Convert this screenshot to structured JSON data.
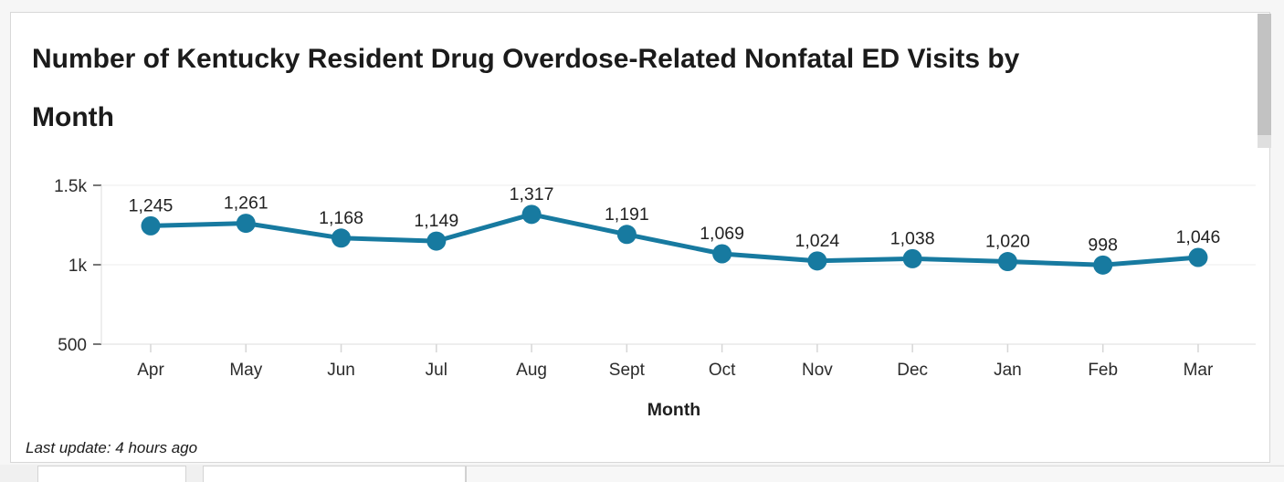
{
  "page": {
    "title_lines": [
      "Number of Kentucky Resident Drug Overdose-Related Nonfatal ED Visits by",
      "Month"
    ],
    "last_update": "Last update: 4 hours ago"
  },
  "chart_data": {
    "type": "line",
    "title": "Number of Kentucky Resident Drug Overdose-Related Nonfatal ED Visits by Month",
    "x": [
      "Apr",
      "May",
      "Jun",
      "Jul",
      "Aug",
      "Sept",
      "Oct",
      "Nov",
      "Dec",
      "Jan",
      "Feb",
      "Mar"
    ],
    "values": [
      1245,
      1261,
      1168,
      1149,
      1317,
      1191,
      1069,
      1024,
      1038,
      1020,
      998,
      1046
    ],
    "labels": [
      "1,245",
      "1,261",
      "1,168",
      "1,149",
      "1,317",
      "1,191",
      "1,069",
      "1,024",
      "1,038",
      "1,020",
      "998",
      "1,046"
    ],
    "xlabel": "Month",
    "ylabel": "",
    "ylim": [
      500,
      1500
    ],
    "yticks": [
      {
        "value": 500,
        "label": "500"
      },
      {
        "value": 1000,
        "label": "1k"
      },
      {
        "value": 1500,
        "label": "1.5k"
      }
    ],
    "line_color": "#177aa0",
    "grid": true,
    "legend": "none",
    "marker": "circle"
  },
  "colors": {
    "accent": "#177aa0",
    "card_background": "#ffffff",
    "page_background": "#f6f6f6",
    "card_border": "#d8d8d8",
    "gridline": "#ececec",
    "axis_line": "#dcdcdc"
  }
}
